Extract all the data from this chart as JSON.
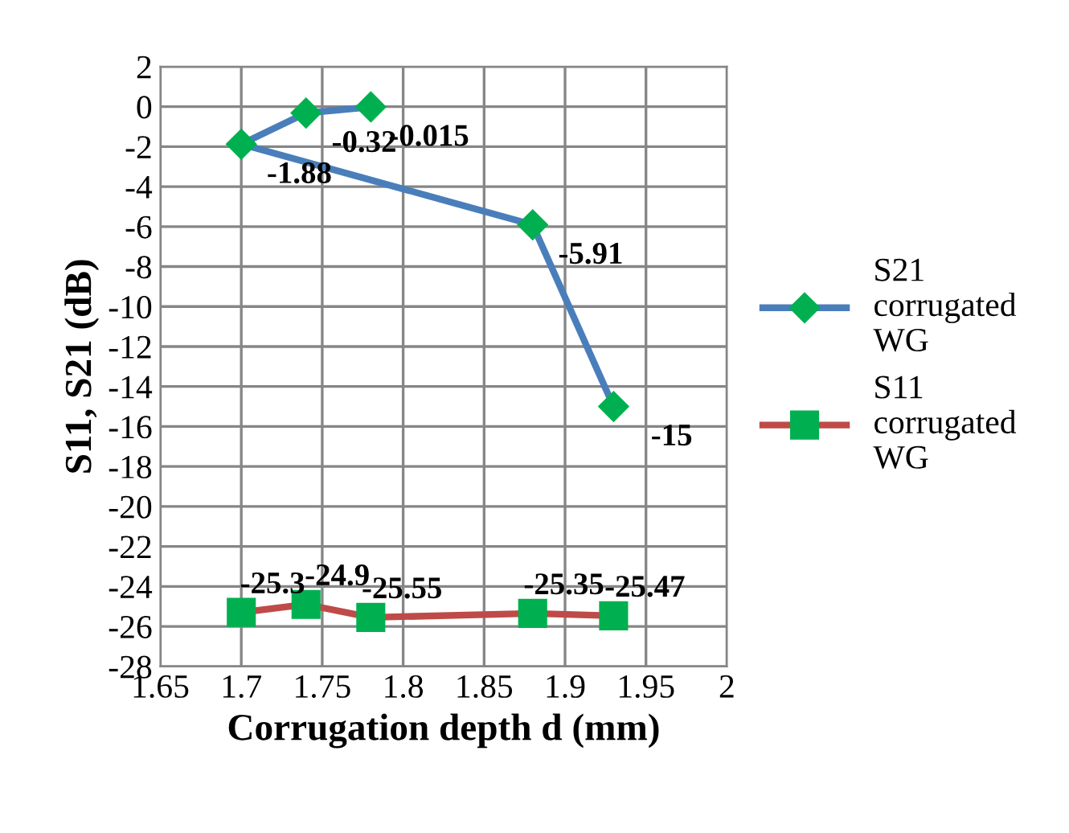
{
  "chart_data": {
    "type": "line",
    "xlabel": "Corrugation depth d (mm)",
    "ylabel": "S11, S21 (dB)",
    "xlim": [
      1.65,
      2
    ],
    "xticks": [
      1.65,
      1.7,
      1.75,
      1.8,
      1.85,
      1.9,
      1.95,
      2
    ],
    "ylim": [
      -28,
      2
    ],
    "yticks": [
      -28,
      -26,
      -24,
      -22,
      -20,
      -18,
      -16,
      -14,
      -12,
      -10,
      -8,
      -6,
      -4,
      -2,
      0,
      2
    ],
    "grid": true,
    "legend": "right",
    "data_labels": true,
    "line_style": "solid",
    "series": [
      {
        "name": "S21 corrugated WG",
        "color": "#4a7ebb",
        "marker": "diamond",
        "x": [
          1.78,
          1.74,
          1.7,
          1.88,
          1.93
        ],
        "values": [
          -0.015,
          -0.32,
          -1.88,
          -5.91,
          -15
        ]
      },
      {
        "name": "S11 corrugated WG",
        "color": "#be4b48",
        "marker": "square",
        "x": [
          1.7,
          1.74,
          1.78,
          1.88,
          1.93
        ],
        "values": [
          -25.3,
          -24.9,
          -25.55,
          -25.35,
          -25.47
        ]
      }
    ]
  }
}
